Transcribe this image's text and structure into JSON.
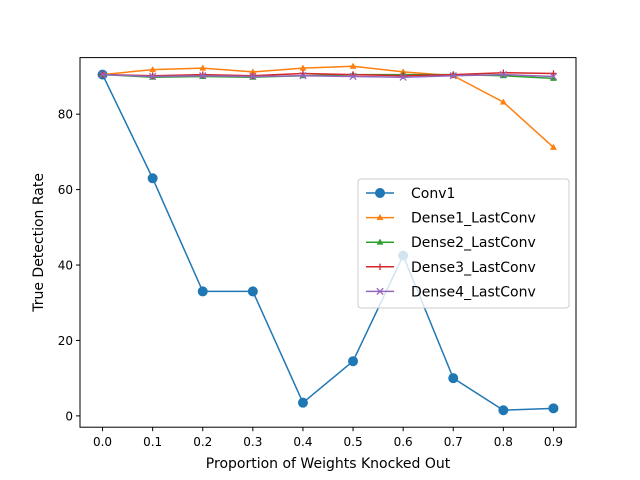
{
  "chart_data": {
    "type": "line",
    "xlabel": "Proportion of Weights Knocked Out",
    "ylabel": "True Detection Rate",
    "x": [
      0.0,
      0.1,
      0.2,
      0.3,
      0.4,
      0.5,
      0.6,
      0.7,
      0.8,
      0.9
    ],
    "xticks": [
      "0.0",
      "0.1",
      "0.2",
      "0.3",
      "0.4",
      "0.5",
      "0.6",
      "0.7",
      "0.8",
      "0.9"
    ],
    "yticks": [
      "0",
      "20",
      "40",
      "60",
      "80"
    ],
    "ytick_values": [
      0,
      20,
      40,
      60,
      80
    ],
    "xlim": [
      -0.045,
      0.945
    ],
    "ylim": [
      -3.0,
      95.0
    ],
    "legend_position": "center-right",
    "grid": false,
    "series": [
      {
        "name": "Conv1",
        "color": "#1f77b4",
        "marker": "circle",
        "values": [
          90.5,
          63.0,
          33.0,
          33.0,
          3.5,
          14.5,
          42.5,
          10.0,
          1.5,
          2.0
        ]
      },
      {
        "name": "Dense1_LastConv",
        "color": "#ff7f0e",
        "marker": "triangle",
        "values": [
          90.5,
          91.8,
          92.2,
          91.2,
          92.2,
          92.7,
          91.2,
          90.2,
          83.2,
          71.2
        ]
      },
      {
        "name": "Dense2_LastConv",
        "color": "#2ca02c",
        "marker": "triangle",
        "values": [
          90.5,
          89.8,
          90.0,
          89.8,
          90.2,
          90.5,
          90.5,
          90.5,
          90.2,
          89.5
        ]
      },
      {
        "name": "Dense3_LastConv",
        "color": "#d62728",
        "marker": "plus",
        "values": [
          90.5,
          90.2,
          90.5,
          90.2,
          90.8,
          90.5,
          90.2,
          90.5,
          91.0,
          90.8
        ]
      },
      {
        "name": "Dense4_LastConv",
        "color": "#9467bd",
        "marker": "x",
        "values": [
          90.5,
          90.0,
          90.2,
          90.0,
          90.2,
          90.0,
          89.8,
          90.2,
          90.5,
          90.0
        ]
      }
    ]
  }
}
